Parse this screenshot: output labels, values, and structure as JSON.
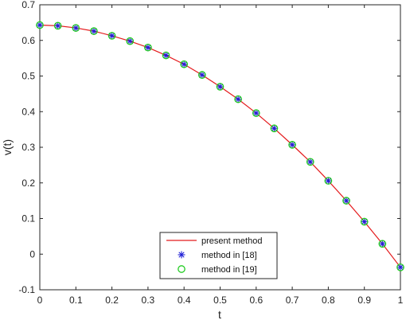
{
  "chart_data": {
    "type": "line",
    "xlabel": "t",
    "ylabel": "v(t)",
    "xlim": [
      0,
      1
    ],
    "ylim": [
      -0.1,
      0.7
    ],
    "x_ticks": [
      "0",
      "0.1",
      "0.2",
      "0.3",
      "0.4",
      "0.5",
      "0.6",
      "0.7",
      "0.8",
      "0.9",
      "1"
    ],
    "y_ticks": [
      "-0.1",
      "0",
      "0.1",
      "0.2",
      "0.3",
      "0.4",
      "0.5",
      "0.6",
      "0.7"
    ],
    "grid": false,
    "legend_position": "bottom-center",
    "series": [
      {
        "name": "present method",
        "style": "line",
        "color": "#e41a1c",
        "x": [
          0,
          0.05,
          0.1,
          0.15,
          0.2,
          0.25,
          0.3,
          0.35,
          0.4,
          0.45,
          0.5,
          0.55,
          0.6,
          0.65,
          0.7,
          0.75,
          0.8,
          0.85,
          0.9,
          0.95,
          1
        ],
        "y": [
          0.643,
          0.641,
          0.635,
          0.626,
          0.613,
          0.598,
          0.58,
          0.558,
          0.533,
          0.503,
          0.47,
          0.435,
          0.396,
          0.353,
          0.307,
          0.259,
          0.206,
          0.15,
          0.091,
          0.029,
          -0.037
        ]
      },
      {
        "name": "method in [18]",
        "style": "star",
        "color": "#1f1fd6",
        "x": [
          0,
          0.05,
          0.1,
          0.15,
          0.2,
          0.25,
          0.3,
          0.35,
          0.4,
          0.45,
          0.5,
          0.55,
          0.6,
          0.65,
          0.7,
          0.75,
          0.8,
          0.85,
          0.9,
          0.95,
          1
        ],
        "y": [
          0.643,
          0.641,
          0.635,
          0.626,
          0.613,
          0.598,
          0.58,
          0.558,
          0.533,
          0.503,
          0.47,
          0.435,
          0.396,
          0.353,
          0.307,
          0.259,
          0.206,
          0.15,
          0.091,
          0.029,
          -0.037
        ]
      },
      {
        "name": "method in [19]",
        "style": "circle",
        "color": "#22cc22",
        "x": [
          0,
          0.05,
          0.1,
          0.15,
          0.2,
          0.25,
          0.3,
          0.35,
          0.4,
          0.45,
          0.5,
          0.55,
          0.6,
          0.65,
          0.7,
          0.75,
          0.8,
          0.85,
          0.9,
          0.95,
          1
        ],
        "y": [
          0.643,
          0.641,
          0.635,
          0.626,
          0.613,
          0.598,
          0.58,
          0.558,
          0.533,
          0.503,
          0.47,
          0.435,
          0.396,
          0.353,
          0.307,
          0.259,
          0.206,
          0.15,
          0.091,
          0.029,
          -0.037
        ]
      }
    ]
  }
}
